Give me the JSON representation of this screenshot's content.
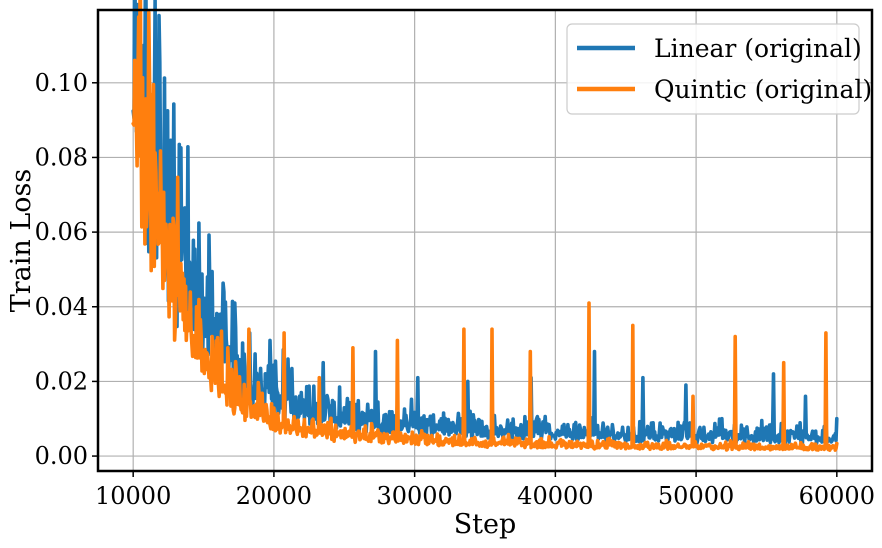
{
  "chart_data": {
    "type": "line",
    "title": "",
    "xlabel": "Step",
    "ylabel": "Train Loss",
    "xlim": [
      7500,
      62500
    ],
    "ylim": [
      -0.004,
      0.1195
    ],
    "x_ticks": [
      10000,
      20000,
      30000,
      40000,
      50000,
      60000
    ],
    "x_tick_labels": [
      "10000",
      "20000",
      "30000",
      "40000",
      "50000",
      "60000"
    ],
    "y_ticks": [
      0.0,
      0.02,
      0.04,
      0.06,
      0.08,
      0.1
    ],
    "y_tick_labels": [
      "0.00",
      "0.02",
      "0.04",
      "0.06",
      "0.08",
      "0.10"
    ],
    "grid": true,
    "legend_position": "top-right",
    "x_range": [
      10000,
      60000
    ],
    "series": [
      {
        "name": "Linear (original)",
        "color": "#1f77b4",
        "base_curve": {
          "x": [
            10000,
            11000,
            12000,
            13000,
            14000,
            15000,
            16000,
            18000,
            20000,
            22000,
            25000,
            30000,
            35000,
            40000,
            45000,
            50000,
            55000,
            60000
          ],
          "y": [
            0.1,
            0.082,
            0.066,
            0.052,
            0.042,
            0.034,
            0.028,
            0.02,
            0.0155,
            0.0125,
            0.0095,
            0.0075,
            0.0064,
            0.0058,
            0.0054,
            0.0052,
            0.005,
            0.0048
          ]
        },
        "spikes": [
          {
            "x": 10300,
            "y": 0.114
          },
          {
            "x": 10600,
            "y": 0.103
          },
          {
            "x": 11300,
            "y": 0.088
          },
          {
            "x": 11700,
            "y": 0.08
          },
          {
            "x": 12400,
            "y": 0.071
          },
          {
            "x": 13000,
            "y": 0.066
          },
          {
            "x": 13500,
            "y": 0.057
          },
          {
            "x": 14000,
            "y": 0.052
          },
          {
            "x": 14700,
            "y": 0.046
          },
          {
            "x": 15300,
            "y": 0.048
          },
          {
            "x": 16200,
            "y": 0.038
          },
          {
            "x": 17200,
            "y": 0.041
          },
          {
            "x": 18300,
            "y": 0.033
          },
          {
            "x": 19700,
            "y": 0.031
          },
          {
            "x": 21000,
            "y": 0.026
          },
          {
            "x": 23500,
            "y": 0.025
          },
          {
            "x": 27200,
            "y": 0.028
          },
          {
            "x": 30200,
            "y": 0.021
          },
          {
            "x": 33800,
            "y": 0.02
          },
          {
            "x": 38300,
            "y": 0.021
          },
          {
            "x": 42800,
            "y": 0.028
          },
          {
            "x": 46200,
            "y": 0.021
          },
          {
            "x": 49300,
            "y": 0.019
          },
          {
            "x": 55500,
            "y": 0.022
          },
          {
            "x": 57800,
            "y": 0.016
          },
          {
            "x": 60000,
            "y": 0.01
          }
        ]
      },
      {
        "name": "Quintic (original)",
        "color": "#ff7f0e",
        "base_curve": {
          "x": [
            10000,
            11000,
            12000,
            13000,
            14000,
            15000,
            16000,
            18000,
            20000,
            22000,
            25000,
            30000,
            35000,
            40000,
            45000,
            50000,
            55000,
            60000
          ],
          "y": [
            0.098,
            0.074,
            0.058,
            0.045,
            0.035,
            0.027,
            0.021,
            0.013,
            0.0095,
            0.0072,
            0.0055,
            0.0042,
            0.0035,
            0.003,
            0.0027,
            0.0025,
            0.0023,
            0.0022
          ]
        },
        "spikes": [
          {
            "x": 10100,
            "y": 0.106
          },
          {
            "x": 11200,
            "y": 0.081
          },
          {
            "x": 12600,
            "y": 0.062
          },
          {
            "x": 13500,
            "y": 0.049
          },
          {
            "x": 14500,
            "y": 0.04
          },
          {
            "x": 15600,
            "y": 0.032
          },
          {
            "x": 16700,
            "y": 0.029
          },
          {
            "x": 18200,
            "y": 0.034
          },
          {
            "x": 20700,
            "y": 0.033
          },
          {
            "x": 23200,
            "y": 0.021
          },
          {
            "x": 25600,
            "y": 0.029
          },
          {
            "x": 28800,
            "y": 0.031
          },
          {
            "x": 33500,
            "y": 0.034
          },
          {
            "x": 35500,
            "y": 0.034
          },
          {
            "x": 38200,
            "y": 0.028
          },
          {
            "x": 42400,
            "y": 0.041
          },
          {
            "x": 45500,
            "y": 0.035
          },
          {
            "x": 49800,
            "y": 0.016
          },
          {
            "x": 52800,
            "y": 0.032
          },
          {
            "x": 56200,
            "y": 0.025
          },
          {
            "x": 59200,
            "y": 0.033
          }
        ]
      }
    ]
  }
}
